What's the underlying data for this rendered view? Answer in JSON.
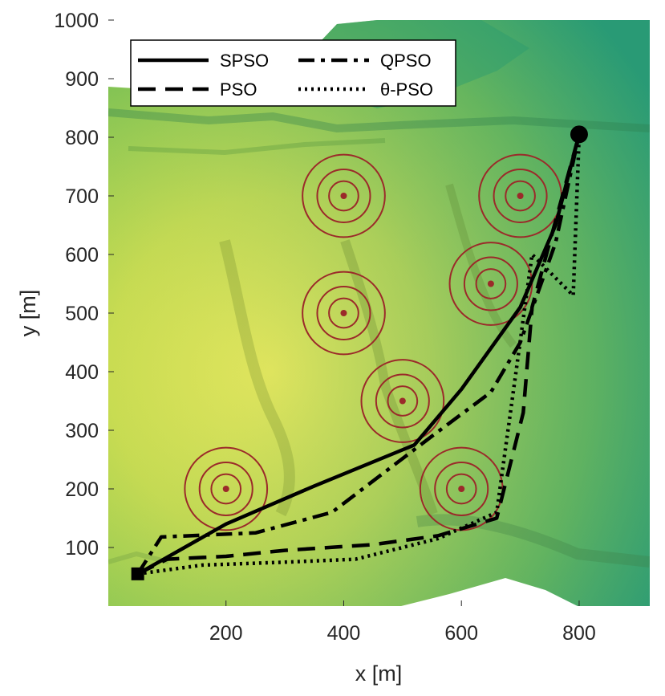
{
  "chart_data": {
    "type": "line",
    "xlabel": "x [m]",
    "ylabel": "y [m]",
    "xlim": [
      0,
      920
    ],
    "ylim": [
      0,
      1000
    ],
    "x_ticks": [
      200,
      400,
      600,
      800
    ],
    "y_ticks": [
      100,
      200,
      300,
      400,
      500,
      600,
      700,
      800,
      900,
      1000
    ],
    "x_tick_labels": [
      "200",
      "400",
      "600",
      "800"
    ],
    "y_tick_labels": [
      "100",
      "200",
      "300",
      "400",
      "500",
      "600",
      "700",
      "800",
      "900",
      "1000"
    ],
    "grid": false,
    "legend_position": "top-left",
    "start": {
      "x": 50,
      "y": 55
    },
    "goal": {
      "x": 800,
      "y": 805
    },
    "obstacles": [
      {
        "x": 200,
        "y": 200
      },
      {
        "x": 400,
        "y": 700
      },
      {
        "x": 400,
        "y": 500
      },
      {
        "x": 500,
        "y": 350
      },
      {
        "x": 600,
        "y": 200
      },
      {
        "x": 650,
        "y": 550
      },
      {
        "x": 700,
        "y": 700
      }
    ],
    "obstacle_ring_radii_m": [
      25,
      45,
      70
    ],
    "colors": {
      "path": "#000000",
      "obstacle": "#9b2a2a",
      "terrain_high": "#f5ee5a",
      "terrain_low": "#0f8a88"
    },
    "series": [
      {
        "name": "SPSO",
        "style": "solid",
        "x": [
          50,
          200,
          350,
          520,
          600,
          700,
          760,
          800
        ],
        "y": [
          55,
          140,
          205,
          275,
          370,
          510,
          650,
          805
        ]
      },
      {
        "name": "PSO",
        "style": "dashed",
        "x": [
          50,
          100,
          200,
          300,
          450,
          560,
          660,
          705,
          720,
          800
        ],
        "y": [
          55,
          80,
          85,
          95,
          105,
          120,
          150,
          330,
          510,
          805
        ]
      },
      {
        "name": "QPSO",
        "style": "dashdot",
        "x": [
          50,
          90,
          250,
          380,
          550,
          650,
          700,
          760,
          800
        ],
        "y": [
          55,
          118,
          125,
          160,
          290,
          365,
          450,
          620,
          805
        ]
      },
      {
        "name": "θ-PSO",
        "style": "dotted",
        "x": [
          50,
          160,
          300,
          420,
          560,
          660,
          690,
          720,
          790,
          800
        ],
        "y": [
          55,
          70,
          75,
          80,
          115,
          160,
          380,
          600,
          530,
          805
        ]
      }
    ]
  }
}
